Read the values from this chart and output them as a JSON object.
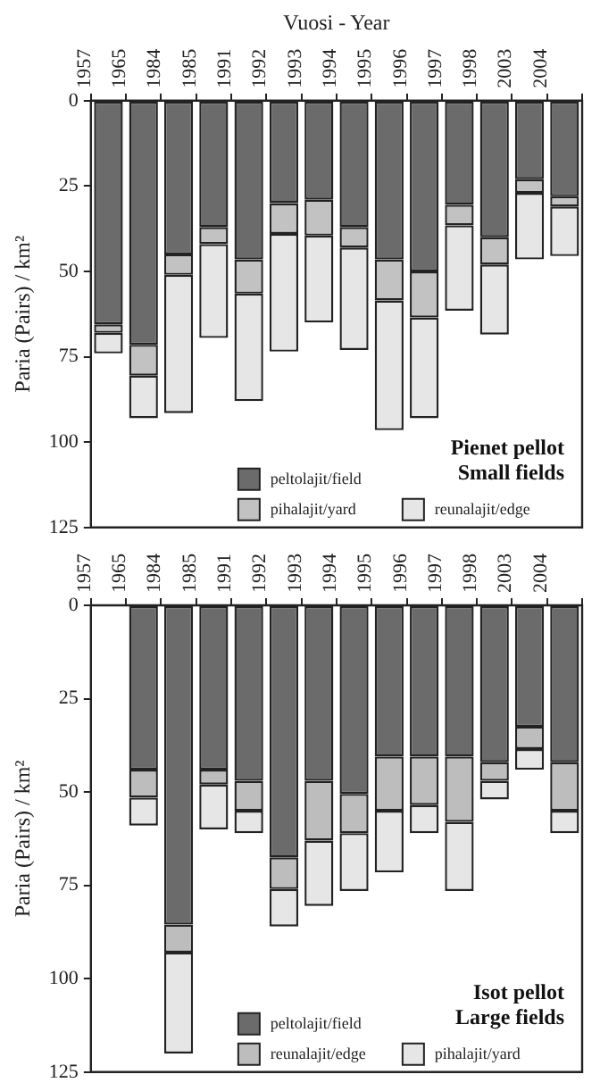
{
  "chart_data": [
    {
      "type": "bar",
      "title": "Pienet pellot",
      "subtitle": "Small fields",
      "xlabel": "Vuosi - Year",
      "ylabel": "Paria (Pairs) / km²",
      "stacked": true,
      "legend": "bottom",
      "grid": false,
      "ylim": [
        125,
        0
      ],
      "yticks": [
        0,
        25,
        50,
        75,
        100,
        125
      ],
      "categories": [
        "1957",
        "1965",
        "1984",
        "1985",
        "1991",
        "1992",
        "1993",
        "1994",
        "1995",
        "1996",
        "1997",
        "1998",
        "2003",
        "2004"
      ],
      "series": [
        {
          "name": "peltolajit/field",
          "color": "#6b6b6b",
          "values": [
            65.5,
            71.5,
            45,
            37,
            46.5,
            30,
            29,
            37,
            46.5,
            50,
            30.5,
            40,
            23,
            28
          ]
        },
        {
          "name": "pihalajit/yard",
          "color": "#c2c2c2",
          "values": [
            2.5,
            9,
            6,
            5,
            10,
            9,
            10.5,
            6,
            12,
            13.5,
            6,
            8,
            4,
            3
          ]
        },
        {
          "name": "reunalajit/edge",
          "color": "#e6e6e6",
          "values": [
            6,
            12.5,
            40.5,
            27.5,
            31.5,
            34.5,
            25.5,
            30,
            38,
            29.5,
            25,
            20.5,
            19.5,
            14.5
          ]
        }
      ]
    },
    {
      "type": "bar",
      "title": "Isot pellot",
      "subtitle": "Large fields",
      "ylabel": "Paria (Pairs) / km²",
      "stacked": true,
      "legend": "bottom",
      "grid": false,
      "ylim": [
        125,
        0
      ],
      "yticks": [
        0,
        25,
        50,
        75,
        100,
        125
      ],
      "categories": [
        "1957",
        "1965",
        "1984",
        "1985",
        "1991",
        "1992",
        "1993",
        "1994",
        "1995",
        "1996",
        "1997",
        "1998",
        "2003",
        "2004"
      ],
      "series": [
        {
          "name": "peltolajit/field",
          "color": "#6b6b6b",
          "values": [
            null,
            44,
            85.5,
            44,
            47,
            67.5,
            47,
            50.5,
            40.5,
            40.5,
            40.5,
            42,
            32.5,
            42
          ]
        },
        {
          "name": "reunalajit/edge",
          "color": "#bdbdbd",
          "values": [
            null,
            7.5,
            7.5,
            4,
            8,
            8.5,
            16,
            10.5,
            14.5,
            13,
            17.5,
            5,
            6,
            13
          ]
        },
        {
          "name": "pihalajit/yard",
          "color": "#e6e6e6",
          "values": [
            null,
            7.5,
            27,
            12,
            6,
            10,
            17.5,
            15.5,
            16.5,
            7.5,
            18.5,
            5,
            5.5,
            6
          ]
        }
      ]
    }
  ]
}
